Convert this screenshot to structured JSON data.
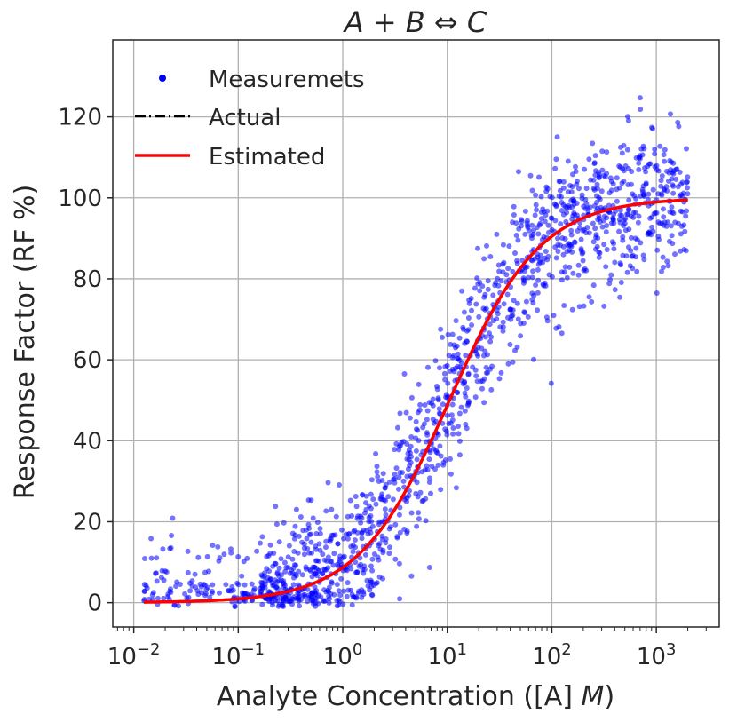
{
  "chart_data": {
    "type": "scatter",
    "title": "A + B ⇔ C",
    "xlabel": "Analyte Concentration ([A] M)",
    "xlabel_prefix": "Analyte Concentration ([A] ",
    "xlabel_unit": "M",
    "xlabel_suffix": ")",
    "ylabel": "Response Factor (RF %)",
    "xscale": "log",
    "xlim": [
      0.0063,
      4000
    ],
    "ylim": [
      -6,
      139
    ],
    "grid": true,
    "legend_position": "top-left",
    "x_ticks": [
      {
        "value": 0.01,
        "base": "10",
        "exp": "−2"
      },
      {
        "value": 0.1,
        "base": "10",
        "exp": "−1"
      },
      {
        "value": 1,
        "base": "10",
        "exp": "0"
      },
      {
        "value": 10,
        "base": "10",
        "exp": "1"
      },
      {
        "value": 100,
        "base": "10",
        "exp": "2"
      },
      {
        "value": 1000,
        "base": "10",
        "exp": "3"
      }
    ],
    "y_ticks": [
      {
        "value": 0,
        "label": "0"
      },
      {
        "value": 20,
        "label": "20"
      },
      {
        "value": 40,
        "label": "40"
      },
      {
        "value": 60,
        "label": "60"
      },
      {
        "value": 80,
        "label": "80"
      },
      {
        "value": 100,
        "label": "100"
      },
      {
        "value": 120,
        "label": "120"
      }
    ],
    "legend": [
      {
        "key": "measurements",
        "label": "Measuremets",
        "style": "marker",
        "color": "#0000ff"
      },
      {
        "key": "actual",
        "label": "Actual",
        "style": "dashdot",
        "color": "#000000"
      },
      {
        "key": "estimated",
        "label": "Estimated",
        "style": "solid",
        "color": "#ff0000"
      }
    ],
    "series": [
      {
        "name": "Measuremets",
        "kind": "scatter",
        "color": "#0000ff",
        "n_points": 1500,
        "x_range": [
          0.0125,
          2000
        ],
        "noise_sd_percent": 9,
        "description": "Noisy measurements scattered around the sigmoidal response curve"
      },
      {
        "name": "Estimated",
        "kind": "line",
        "color": "#ff0000",
        "model": "hill",
        "params": {
          "bottom": 0,
          "top": 100,
          "ec50": 10.5,
          "hill_slope": 1.0
        },
        "x_range": [
          0.0125,
          2000
        ]
      },
      {
        "name": "Actual",
        "kind": "line",
        "color": "#000000",
        "style": "dashdot",
        "model": "hill",
        "params": {
          "bottom": 0,
          "top": 100,
          "ec50": 10.5,
          "hill_slope": 1.0
        },
        "x_range": [
          0.0125,
          2000
        ],
        "hidden_behind": "Estimated"
      }
    ]
  }
}
